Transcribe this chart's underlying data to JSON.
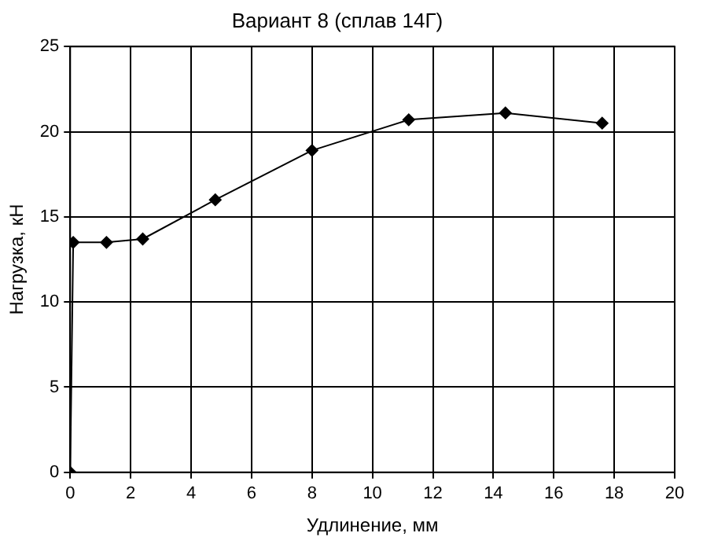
{
  "chart_data": {
    "type": "line",
    "title": "Вариант 8 (сплав 14Г)",
    "xlabel": "Удлинение, мм",
    "ylabel": "Нагрузка, кН",
    "x": [
      0,
      0.1,
      1.2,
      2.4,
      4.8,
      8,
      11.2,
      14.4,
      17.6
    ],
    "values": [
      0,
      13.5,
      13.5,
      13.7,
      16,
      18.9,
      20.7,
      21.1,
      20.5
    ],
    "color": "#000000",
    "marker": "diamond",
    "line_style": "solid",
    "xlim": [
      0,
      20
    ],
    "xticks": [
      0,
      2,
      4,
      6,
      8,
      10,
      12,
      14,
      16,
      18,
      20
    ],
    "ylim": [
      0,
      25
    ],
    "yticks": [
      0,
      5,
      10,
      15,
      20,
      25
    ],
    "grid": true,
    "legend": false
  }
}
